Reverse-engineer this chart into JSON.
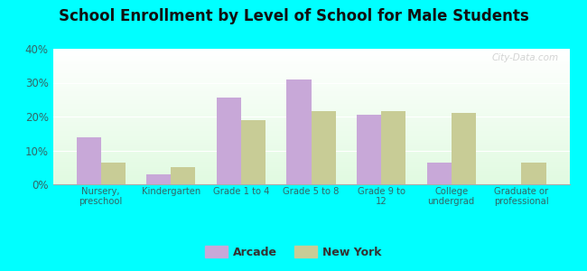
{
  "title": "School Enrollment by Level of School for Male Students",
  "categories": [
    "Nursery,\npreschool",
    "Kindergarten",
    "Grade 1 to 4",
    "Grade 5 to 8",
    "Grade 9 to\n12",
    "College\nundergrad",
    "Graduate or\nprofessional"
  ],
  "arcade_values": [
    14,
    3,
    25.5,
    31,
    20.5,
    6.5,
    0
  ],
  "newyork_values": [
    6.5,
    5,
    19,
    21.5,
    21.5,
    21,
    6.5
  ],
  "arcade_color": "#c8a8d8",
  "newyork_color": "#c8cc96",
  "background_color": "#00ffff",
  "ylim": [
    0,
    40
  ],
  "yticks": [
    0,
    10,
    20,
    30,
    40
  ],
  "title_fontsize": 12,
  "legend_labels": [
    "Arcade",
    "New York"
  ],
  "watermark": "City-Data.com"
}
